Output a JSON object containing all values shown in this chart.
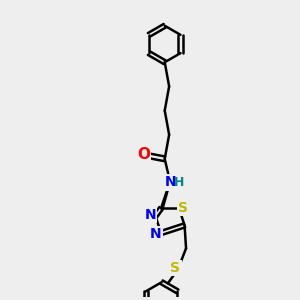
{
  "bg_color": "#eeeeee",
  "bond_color": "#000000",
  "bond_width": 1.8,
  "atom_colors": {
    "O": "#ff0000",
    "N": "#0000ff",
    "S": "#bbbb00",
    "C": "#000000",
    "H": "#008888"
  },
  "font_size": 10
}
